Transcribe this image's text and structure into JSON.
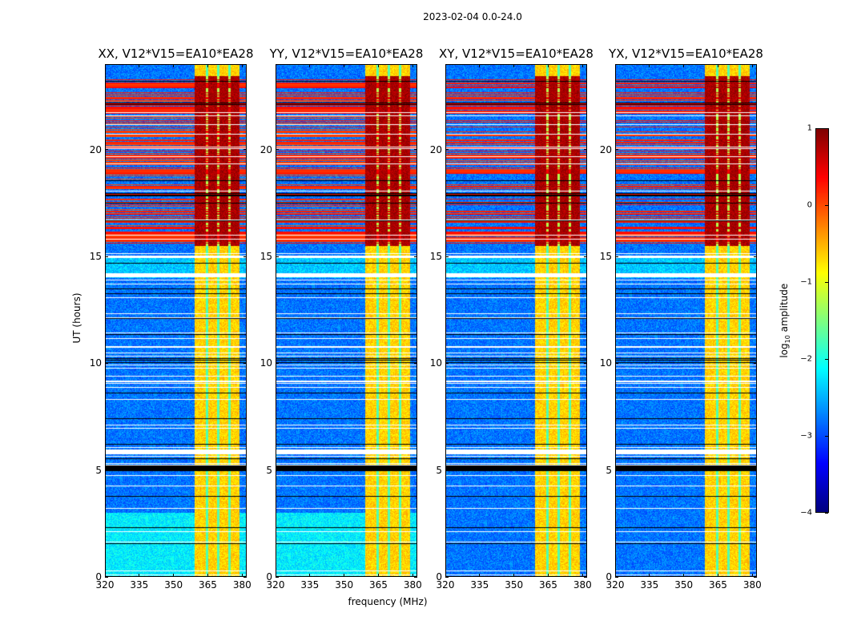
{
  "chart_data": {
    "type": "heatmap",
    "title": "2023-02-04 0.0-24.0",
    "xlabel": "frequency (MHz)",
    "ylabel": "UT (hours)",
    "xlim": [
      320,
      382
    ],
    "ylim": [
      0,
      24
    ],
    "xticks": [
      "320",
      "335",
      "350",
      "365",
      "380"
    ],
    "xtick_values": [
      320,
      335,
      350,
      365,
      380
    ],
    "yticks": [
      "0",
      "5",
      "10",
      "15",
      "20"
    ],
    "ytick_values": [
      0,
      5,
      10,
      15,
      20
    ],
    "panels": [
      {
        "title": "XX, V12*V15=EA10*EA28",
        "polarization": "XX"
      },
      {
        "title": "YY, V12*V15=EA10*EA28",
        "polarization": "YY"
      },
      {
        "title": "XY, V12*V15=EA10*EA28",
        "polarization": "XY"
      },
      {
        "title": "YX, V12*V15=EA10*EA28",
        "polarization": "YX"
      }
    ],
    "colorbar": {
      "label_prefix": "log",
      "label_sub": "10",
      "label_suffix": " amplitude",
      "colormap": "jet",
      "range": [
        -4,
        1
      ],
      "ticks": [
        "1",
        "0",
        "−1",
        "−2",
        "−3",
        "−4"
      ],
      "tick_values": [
        1,
        0,
        -1,
        -2,
        -3,
        -4
      ]
    },
    "rfi_band_MHz": [
      360,
      380
    ],
    "strong_rfi_hours": [
      15.5,
      23.5
    ],
    "grid": false
  }
}
